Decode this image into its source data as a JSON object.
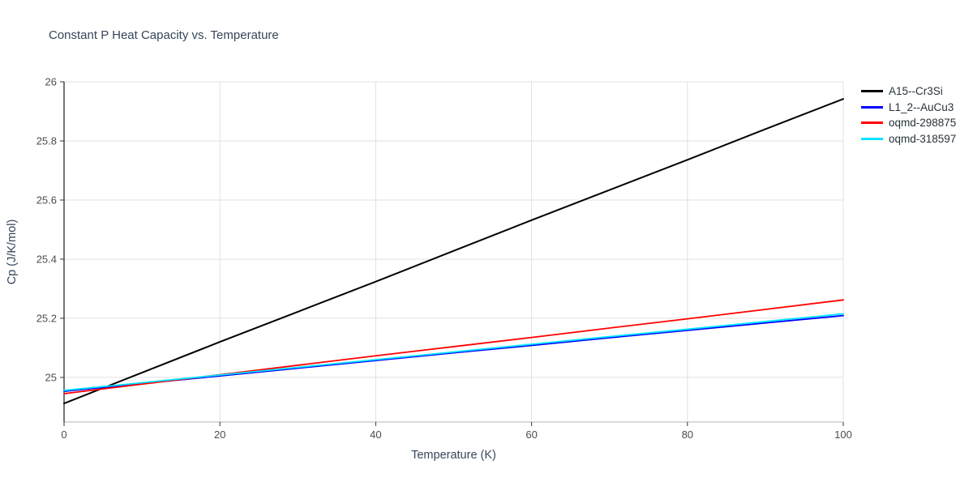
{
  "title": "Constant P Heat Capacity vs. Temperature",
  "colors": {
    "title_text": "#36455a",
    "axis_label_text": "#36455a",
    "tick_text": "#4d4d4d",
    "grid": "#e0e0e0",
    "left_spine": "#1a1a1a",
    "bottom_spine": "#b5b5b5",
    "tick_mark": "#333333"
  },
  "chart_data": {
    "type": "line",
    "title": "Constant P Heat Capacity vs. Temperature",
    "xlabel": "Temperature (K)",
    "ylabel": "Cp (J/K/mol)",
    "xlim": [
      0,
      100
    ],
    "ylim": [
      24.849,
      26.0
    ],
    "x_ticks": [
      0,
      20,
      40,
      60,
      80,
      100
    ],
    "y_ticks": [
      25,
      25.2,
      25.4,
      25.6,
      25.8,
      26
    ],
    "grid": true,
    "legend_position": "top-right",
    "x": [
      0,
      10,
      20,
      30,
      40,
      50,
      60,
      70,
      80,
      90,
      100
    ],
    "series": [
      {
        "name": "A15--Cr3Si",
        "color": "#000000",
        "width": 2,
        "values": [
          24.912,
          25.016,
          25.12,
          25.222,
          25.324,
          25.428,
          25.532,
          25.634,
          25.736,
          25.84,
          25.942
        ]
      },
      {
        "name": "L1_2--AuCu3",
        "color": "#0000ff",
        "width": 1.8,
        "values": [
          24.953,
          24.979,
          25.005,
          25.031,
          25.057,
          25.083,
          25.108,
          25.134,
          25.159,
          25.184,
          25.209
        ]
      },
      {
        "name": "oqmd-298875",
        "color": "#ff0000",
        "width": 1.8,
        "values": [
          24.945,
          24.977,
          25.009,
          25.041,
          25.073,
          25.104,
          25.135,
          25.167,
          25.198,
          25.23,
          25.262
        ]
      },
      {
        "name": "oqmd-318597",
        "color": "#00e5ff",
        "width": 1.8,
        "values": [
          24.956,
          24.982,
          25.008,
          25.034,
          25.06,
          25.086,
          25.112,
          25.138,
          25.163,
          25.189,
          25.215
        ]
      }
    ]
  }
}
